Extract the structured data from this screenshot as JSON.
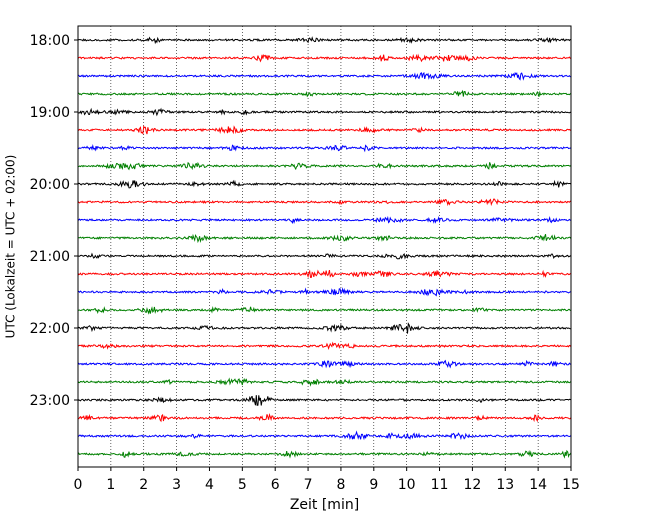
{
  "chart_data": {
    "type": "line",
    "chart_kind": "helicorder seismogram",
    "xlabel": "Zeit  [min]",
    "ylabel": "UTC (Lokalzeit = UTC + 02:00)",
    "xlim": [
      0,
      15
    ],
    "x_ticks": [
      0,
      1,
      2,
      3,
      4,
      5,
      6,
      7,
      8,
      9,
      10,
      11,
      12,
      13,
      14,
      15
    ],
    "x_tick_labels": [
      "0",
      "1",
      "2",
      "3",
      "4",
      "5",
      "6",
      "7",
      "8",
      "9",
      "10",
      "11",
      "12",
      "13",
      "14",
      "15"
    ],
    "y_tick_labels": [
      "18:00",
      "19:00",
      "20:00",
      "21:00",
      "22:00",
      "23:00"
    ],
    "trace_minutes": 15,
    "trace_start_times": [
      "18:00",
      "18:15",
      "18:30",
      "18:45",
      "19:00",
      "19:15",
      "19:30",
      "19:45",
      "20:00",
      "20:15",
      "20:30",
      "20:45",
      "21:00",
      "21:15",
      "21:30",
      "21:45",
      "22:00",
      "22:15",
      "22:30",
      "22:45",
      "23:00",
      "23:15",
      "23:30",
      "23:45"
    ],
    "trace_colors": [
      "#000000",
      "#ff0000",
      "#0000ff",
      "#008000"
    ],
    "grid": "vertical dotted at each minute",
    "legend": "none"
  }
}
